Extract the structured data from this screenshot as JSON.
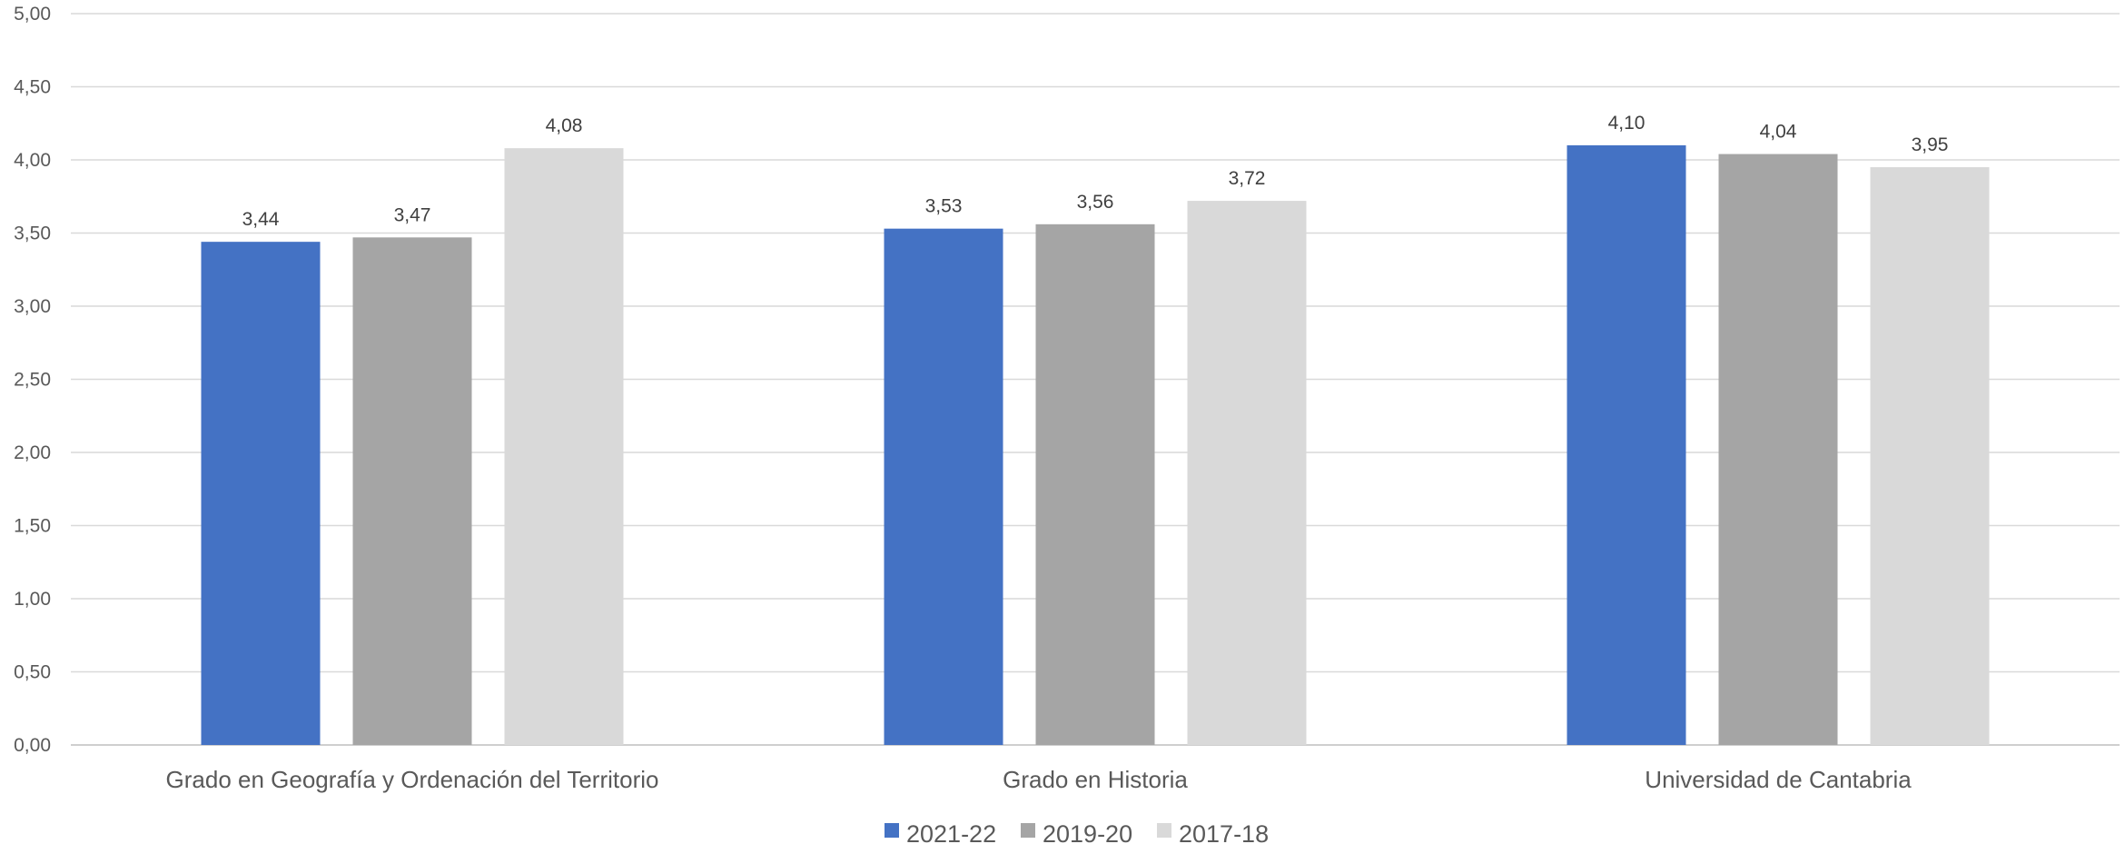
{
  "chart_data": {
    "type": "bar",
    "title": "",
    "xlabel": "",
    "ylabel": "",
    "ylim": [
      0,
      5
    ],
    "grid": true,
    "legend_position": "bottom",
    "y_ticks": [
      "0,00",
      "0,50",
      "1,00",
      "1,50",
      "2,00",
      "2,50",
      "3,00",
      "3,50",
      "4,00",
      "4,50",
      "5,00"
    ],
    "categories": [
      "Grado en Geografía y Ordenación del Territorio",
      "Grado en Historia",
      "Universidad de Cantabria"
    ],
    "series": [
      {
        "name": "2021-22",
        "color": "#4472C4",
        "values": [
          3.44,
          3.53,
          4.1
        ],
        "labels": [
          "3,44",
          "3,53",
          "4,10"
        ]
      },
      {
        "name": "2019-20",
        "color": "#A5A5A5",
        "values": [
          3.47,
          3.56,
          4.04
        ],
        "labels": [
          "3,47",
          "3,56",
          "4,04"
        ]
      },
      {
        "name": "2017-18",
        "color": "#D9D9D9",
        "values": [
          4.08,
          3.72,
          3.95
        ],
        "labels": [
          "4,08",
          "3,72",
          "3,95"
        ]
      }
    ]
  }
}
